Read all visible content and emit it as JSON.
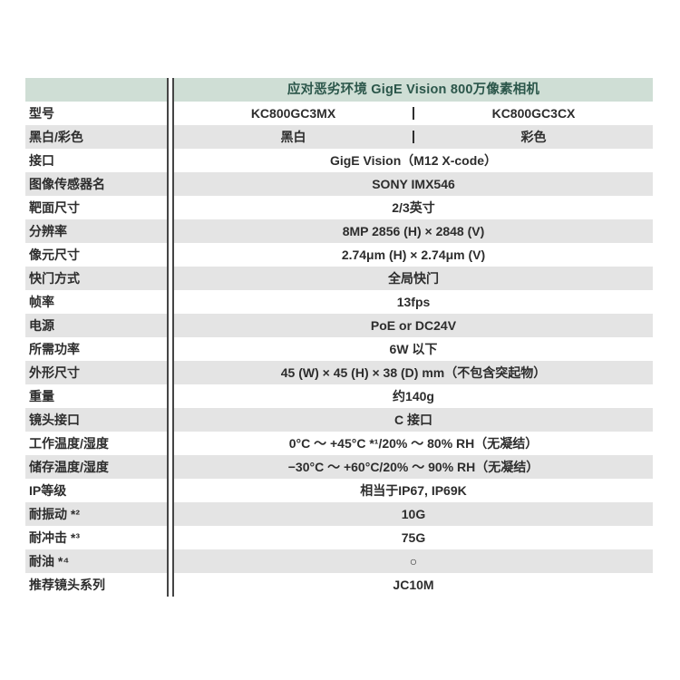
{
  "colors": {
    "header_background": "#cfded5",
    "header_text": "#2b564a",
    "stripe_gray": "#e4e4e4",
    "body_text": "#2d2d2d",
    "divider_line": "#454545"
  },
  "table": {
    "title": "应对恶劣环境 GigE Vision 800万像素相机",
    "rows": [
      {
        "label": "型号",
        "values": [
          "KC800GC3MX",
          "KC800GC3CX"
        ]
      },
      {
        "label": "黑白/彩色",
        "values": [
          "黑白",
          "彩色"
        ]
      },
      {
        "label": "接口",
        "value": "GigE Vision（M12 X-code）"
      },
      {
        "label": "图像传感器名",
        "value": "SONY IMX546"
      },
      {
        "label": "靶面尺寸",
        "value": "2/3英寸"
      },
      {
        "label": "分辨率",
        "value": "8MP 2856 (H) × 2848 (V)"
      },
      {
        "label": "像元尺寸",
        "value": "2.74μm (H) × 2.74μm (V)"
      },
      {
        "label": "快门方式",
        "value": "全局快门"
      },
      {
        "label": "帧率",
        "value": "13fps"
      },
      {
        "label": "电源",
        "value": "PoE or DC24V"
      },
      {
        "label": "所需功率",
        "value": "6W 以下"
      },
      {
        "label": "外形尺寸",
        "value": "45 (W) × 45 (H) × 38 (D) mm（不包含突起物）"
      },
      {
        "label": "重量",
        "value": "约140g"
      },
      {
        "label": "镜头接口",
        "value": "C 接口"
      },
      {
        "label": "工作温度/湿度",
        "value": "0°C ～ +45°C *¹/20% ～ 80% RH（无凝结）"
      },
      {
        "label": "储存温度/湿度",
        "value": "−30°C ～ +60°C/20% ～ 90% RH（无凝结）"
      },
      {
        "label": "IP等级",
        "value": "相当于IP67, IP69K"
      },
      {
        "label": "耐振动 *²",
        "value": "10G"
      },
      {
        "label": "耐冲击 *³",
        "value": "75G"
      },
      {
        "label": "耐油 *⁴",
        "value": "○"
      },
      {
        "label": "推荐镜头系列",
        "value": "JC10M"
      }
    ]
  }
}
